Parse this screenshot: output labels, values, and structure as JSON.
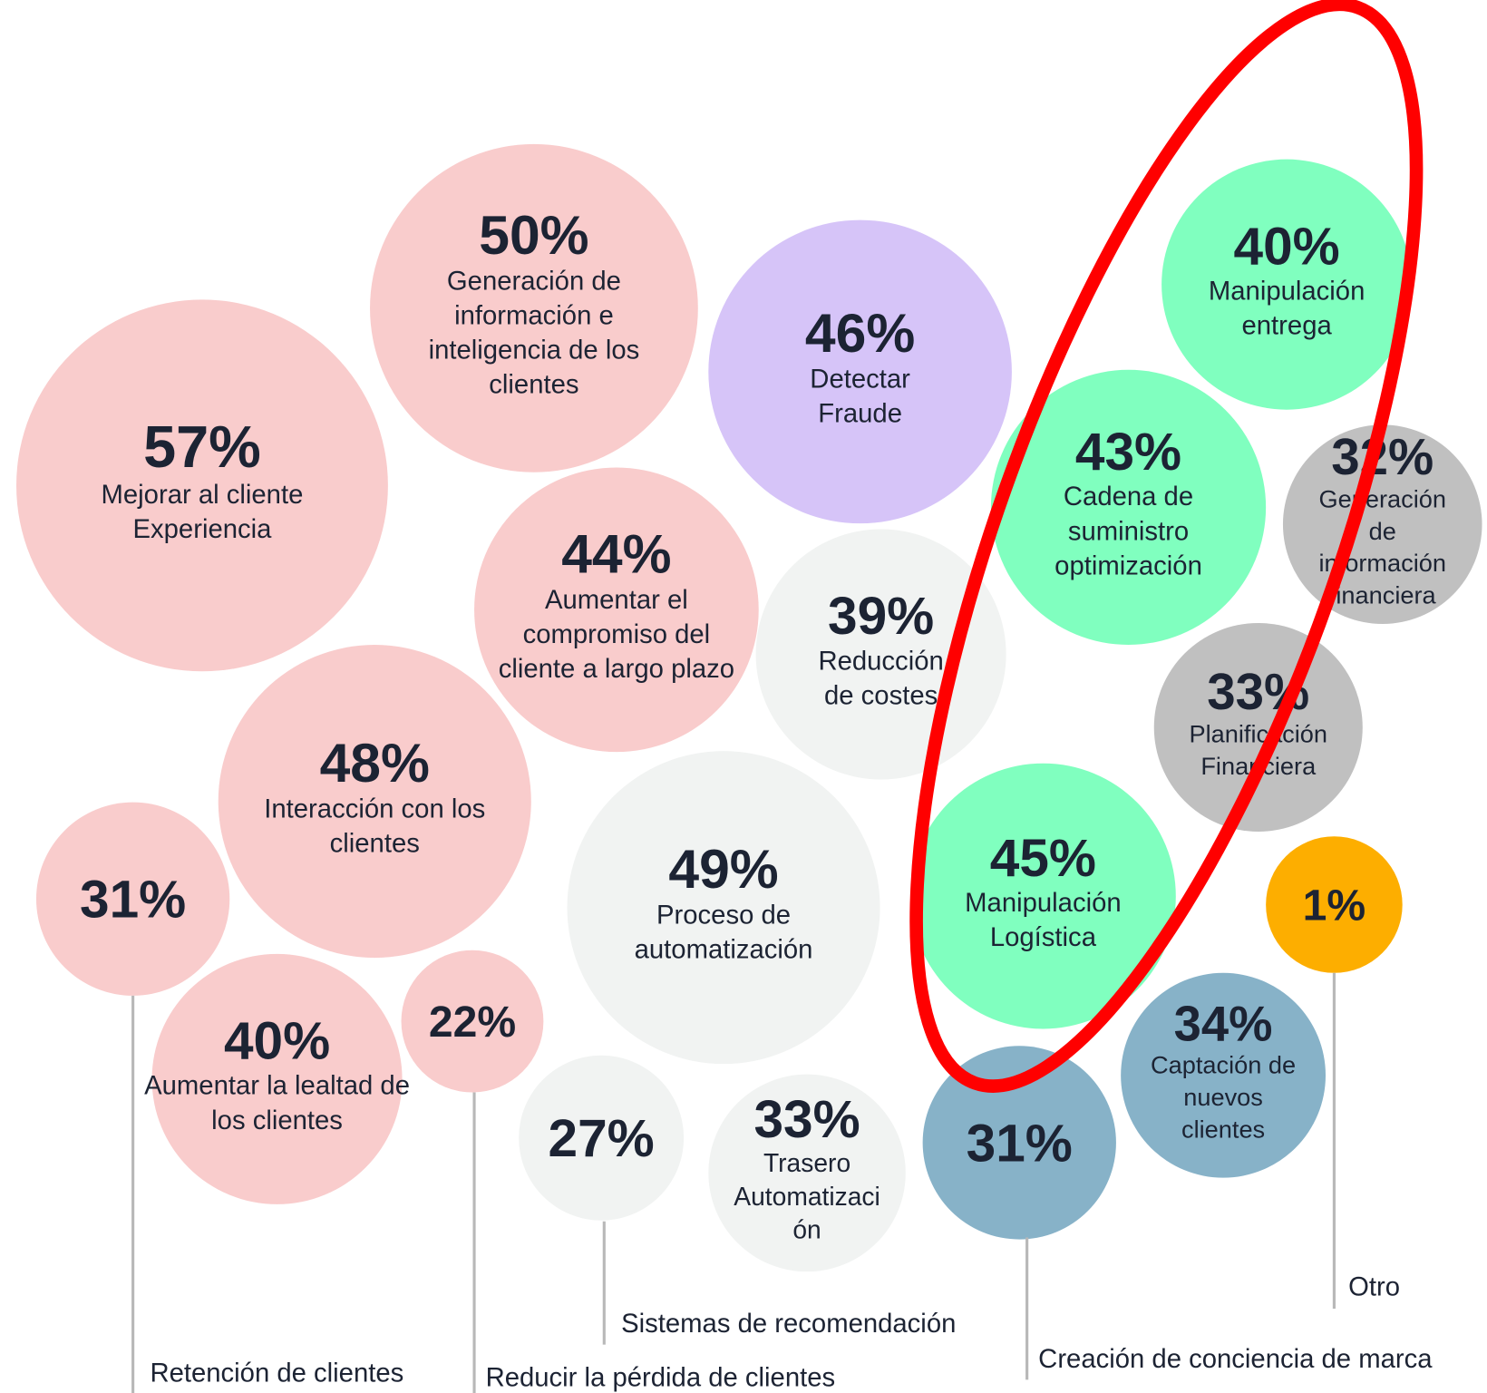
{
  "chart_data": {
    "type": "bubble",
    "bubbles": [
      {
        "value": 57,
        "value_label": "57%",
        "label": [
          "Mejorar al cliente",
          "Experiencia"
        ],
        "color": "#f9cccc"
      },
      {
        "value": 50,
        "value_label": "50%",
        "label": [
          "Generación de",
          "información e",
          "inteligencia de los",
          "clientes"
        ],
        "color": "#f9cccc"
      },
      {
        "value": 46,
        "value_label": "46%",
        "label": [
          "Detectar",
          "Fraude"
        ],
        "color": "#d6c4f8"
      },
      {
        "value": 44,
        "value_label": "44%",
        "label": [
          "Aumentar el",
          "compromiso del",
          "cliente a largo plazo"
        ],
        "color": "#f9cccc"
      },
      {
        "value": 39,
        "value_label": "39%",
        "label": [
          "Reducción",
          "de costes"
        ],
        "color": "#f1f3f2"
      },
      {
        "value": 48,
        "value_label": "48%",
        "label": [
          "Interacción con los",
          "clientes"
        ],
        "color": "#f9cccc"
      },
      {
        "value": 49,
        "value_label": "49%",
        "label": [
          "Proceso de",
          "automatización"
        ],
        "color": "#f1f3f2"
      },
      {
        "value": 31,
        "value_label": "31%",
        "callout": "Retención de clientes",
        "color": "#f9cccc"
      },
      {
        "value": 40,
        "value_label": "40%",
        "label": [
          "Aumentar la lealtad de",
          "los clientes"
        ],
        "color": "#f9cccc"
      },
      {
        "value": 22,
        "value_label": "22%",
        "callout": "Reducir la pérdida de clientes",
        "color": "#f9cccc"
      },
      {
        "value": 27,
        "value_label": "27%",
        "callout": "Sistemas de recomendación",
        "color": "#f1f3f2"
      },
      {
        "value": 33,
        "value_label": "33%",
        "label": [
          "Trasero",
          "Automatizaci",
          "ón"
        ],
        "color": "#f1f3f2"
      },
      {
        "value": 40,
        "value_label": "40%",
        "label": [
          "Manipulación",
          "entrega"
        ],
        "color": "#80ffbf"
      },
      {
        "value": 43,
        "value_label": "43%",
        "label": [
          "Cadena de",
          "suministro",
          "optimización"
        ],
        "color": "#80ffbf"
      },
      {
        "value": 32,
        "value_label": "32%",
        "label": [
          "Generación",
          "de",
          "información",
          "financiera"
        ],
        "color": "#c0c0c0"
      },
      {
        "value": 33,
        "value_label": "33%",
        "label": [
          "Planificación",
          "Financiera"
        ],
        "color": "#c0c0c0"
      },
      {
        "value": 45,
        "value_label": "45%",
        "label": [
          "Manipulación",
          "Logística"
        ],
        "color": "#80ffbf"
      },
      {
        "value": 1,
        "value_label": "1%",
        "callout": "Otro",
        "color": "#fdae00"
      },
      {
        "value": 34,
        "value_label": "34%",
        "label": [
          "Captación de",
          "nuevos",
          "clientes"
        ],
        "color": "#87b2c8"
      },
      {
        "value": 31,
        "value_label": "31%",
        "callout": "Creación de conciencia de marca",
        "color": "#87b2c8"
      }
    ]
  }
}
